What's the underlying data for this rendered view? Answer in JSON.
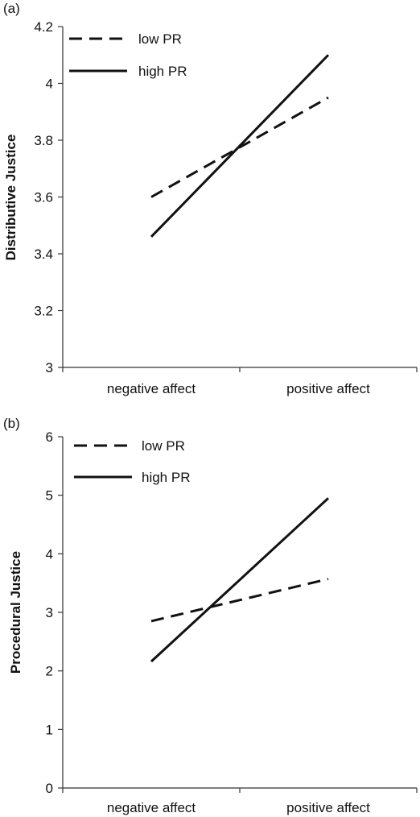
{
  "chart_data": [
    {
      "type": "line",
      "panel_label": "(a)",
      "categories": [
        "negative affect",
        "positive affect"
      ],
      "ylabel": "Distributive Justice",
      "ylim": [
        3,
        4.2
      ],
      "yticks": [
        "3",
        "3.2",
        "3.4",
        "3.6",
        "3.8",
        "4",
        "4.2"
      ],
      "ytick_values": [
        3,
        3.2,
        3.4,
        3.6,
        3.8,
        4,
        4.2
      ],
      "legend_position": "top-left",
      "grid": false,
      "series": [
        {
          "name": "low PR",
          "style": "dashed",
          "values": [
            3.6,
            3.95
          ]
        },
        {
          "name": "high PR",
          "style": "solid",
          "values": [
            3.46,
            4.1
          ]
        }
      ]
    },
    {
      "type": "line",
      "panel_label": "(b)",
      "categories": [
        "negative affect",
        "positive affect"
      ],
      "ylabel": "Procedural Justice",
      "ylim": [
        0,
        6
      ],
      "yticks": [
        "0",
        "1",
        "2",
        "3",
        "4",
        "5",
        "6"
      ],
      "ytick_values": [
        0,
        1,
        2,
        3,
        4,
        5,
        6
      ],
      "legend_position": "top-left",
      "grid": false,
      "series": [
        {
          "name": "low PR",
          "style": "dashed",
          "values": [
            2.85,
            3.57
          ]
        },
        {
          "name": "high PR",
          "style": "solid",
          "values": [
            2.16,
            4.95
          ]
        }
      ]
    }
  ],
  "colors": {
    "line": "#111111",
    "axis": "#333333"
  }
}
